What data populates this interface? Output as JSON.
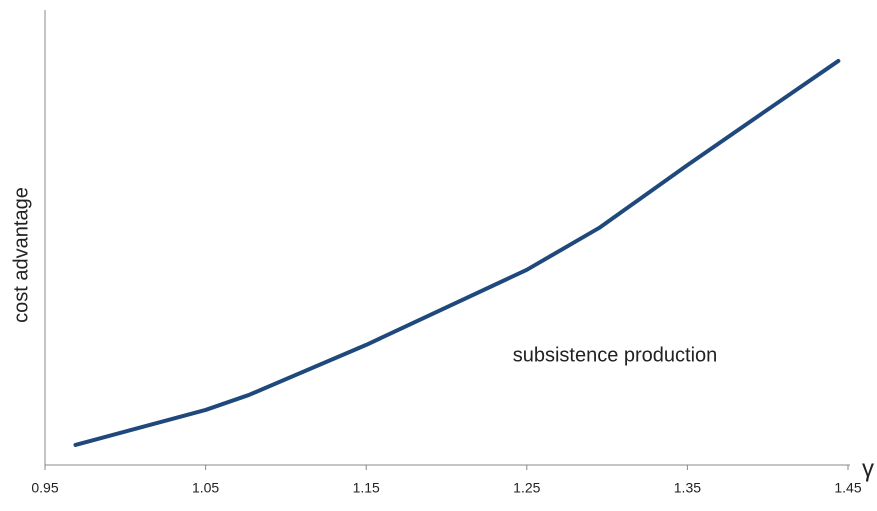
{
  "chart_data": {
    "type": "line",
    "y_label": "cost advantage",
    "x_label": "γ",
    "annotation": "subsistence production",
    "x": [
      0.969,
      1.05,
      1.077,
      1.15,
      1.25,
      1.295,
      1.35,
      1.395,
      1.444
    ],
    "series": [
      {
        "color": "#1f497d",
        "values": [
          4.4,
          12.1,
          15.4,
          26.4,
          42.9,
          52.1,
          65.9,
          76.9,
          88.8
        ]
      }
    ],
    "xlim": [
      0.95,
      1.45
    ],
    "xticks": [
      0.95,
      1.05,
      1.15,
      1.25,
      1.35,
      1.45
    ],
    "ylim": [
      0,
      100
    ]
  }
}
